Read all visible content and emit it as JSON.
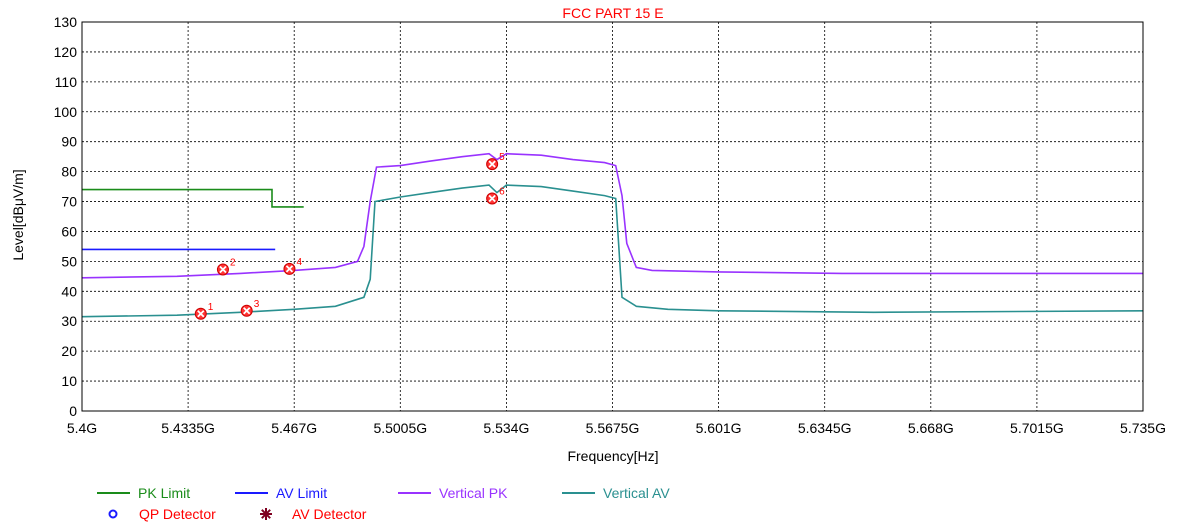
{
  "chart_data": {
    "type": "line",
    "title": "FCC PART 15 E",
    "xlabel": "Frequency[Hz]",
    "ylabel": "Level[dBμV/m]",
    "xlim": [
      5.4,
      5.735
    ],
    "ylim": [
      0,
      130
    ],
    "x_tick_values": [
      5.4,
      5.4335,
      5.467,
      5.5005,
      5.534,
      5.5675,
      5.601,
      5.6345,
      5.668,
      5.7015,
      5.735
    ],
    "x_tick_labels": [
      "5.4G",
      "5.4335G",
      "5.467G",
      "5.5005G",
      "5.534G",
      "5.5675G",
      "5.601G",
      "5.6345G",
      "5.668G",
      "5.7015G",
      "5.735G"
    ],
    "y_ticks": [
      0,
      10,
      20,
      30,
      40,
      50,
      60,
      70,
      80,
      90,
      100,
      110,
      120,
      130
    ],
    "grid": true,
    "series": [
      {
        "name": "PK Limit",
        "color": "#1a8c1a",
        "points": [
          [
            5.4,
            74
          ],
          [
            5.46,
            74
          ],
          [
            5.46,
            68.2
          ],
          [
            5.47,
            68.2
          ]
        ]
      },
      {
        "name": "AV Limit",
        "color": "#1a1aff",
        "points": [
          [
            5.4,
            54
          ],
          [
            5.461,
            54
          ]
        ]
      },
      {
        "name": "Vertical PK",
        "color": "#9933ff",
        "points": [
          [
            5.4,
            44.5
          ],
          [
            5.43,
            45
          ],
          [
            5.45,
            46
          ],
          [
            5.467,
            47
          ],
          [
            5.48,
            48
          ],
          [
            5.487,
            50
          ],
          [
            5.489,
            55
          ],
          [
            5.491,
            70
          ],
          [
            5.493,
            81.5
          ],
          [
            5.5005,
            82
          ],
          [
            5.51,
            83.5
          ],
          [
            5.52,
            85
          ],
          [
            5.5285,
            86
          ],
          [
            5.531,
            84
          ],
          [
            5.534,
            86
          ],
          [
            5.545,
            85.5
          ],
          [
            5.555,
            84
          ],
          [
            5.565,
            83
          ],
          [
            5.5685,
            82
          ],
          [
            5.5705,
            72
          ],
          [
            5.572,
            56
          ],
          [
            5.575,
            48
          ],
          [
            5.58,
            47
          ],
          [
            5.601,
            46.5
          ],
          [
            5.64,
            46
          ],
          [
            5.7,
            46
          ],
          [
            5.735,
            46
          ]
        ]
      },
      {
        "name": "Vertical AV",
        "color": "#2a9090",
        "points": [
          [
            5.4,
            31.5
          ],
          [
            5.43,
            32
          ],
          [
            5.45,
            33
          ],
          [
            5.467,
            34
          ],
          [
            5.48,
            35
          ],
          [
            5.489,
            38
          ],
          [
            5.491,
            44
          ],
          [
            5.4925,
            70
          ],
          [
            5.5005,
            71.5
          ],
          [
            5.51,
            73
          ],
          [
            5.52,
            74.5
          ],
          [
            5.5285,
            75.5
          ],
          [
            5.531,
            73
          ],
          [
            5.534,
            75.5
          ],
          [
            5.545,
            75
          ],
          [
            5.555,
            73.5
          ],
          [
            5.565,
            72
          ],
          [
            5.5685,
            71
          ],
          [
            5.5695,
            55
          ],
          [
            5.5705,
            38
          ],
          [
            5.575,
            35
          ],
          [
            5.585,
            34
          ],
          [
            5.601,
            33.5
          ],
          [
            5.65,
            33
          ],
          [
            5.735,
            33.5
          ]
        ]
      }
    ],
    "markers": [
      {
        "label": "1",
        "x": 5.4375,
        "y": 32.5
      },
      {
        "label": "2",
        "x": 5.4445,
        "y": 47.3
      },
      {
        "label": "3",
        "x": 5.452,
        "y": 33.5
      },
      {
        "label": "4",
        "x": 5.4655,
        "y": 47.5
      },
      {
        "label": "5",
        "x": 5.5295,
        "y": 82.5
      },
      {
        "label": "6",
        "x": 5.5295,
        "y": 71
      }
    ],
    "legend": {
      "placement": "bottom-left",
      "line_entries": [
        {
          "label": "PK Limit",
          "color": "#1a8c1a"
        },
        {
          "label": "AV Limit",
          "color": "#1a1aff"
        },
        {
          "label": "Vertical PK",
          "color": "#9933ff"
        },
        {
          "label": "Vertical AV",
          "color": "#2a9090"
        }
      ],
      "marker_entries": [
        {
          "label": "QP Detector",
          "symbol": "circle",
          "color": "#1a1aff"
        },
        {
          "label": "AV Detector",
          "symbol": "star",
          "color": "#800020"
        }
      ],
      "label_color": "#ff0000"
    }
  }
}
